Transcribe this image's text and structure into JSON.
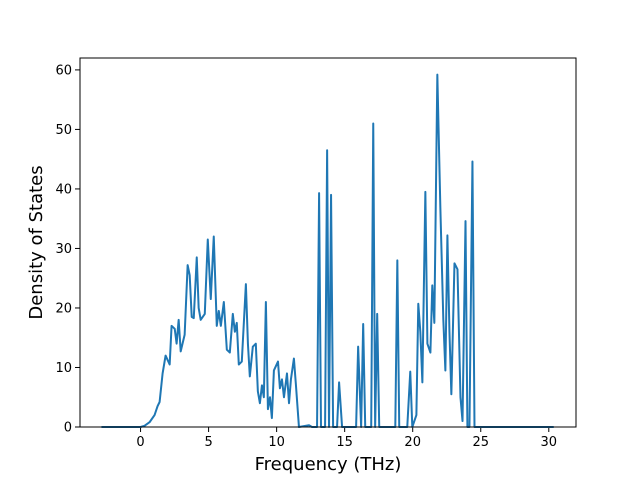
{
  "chart_data": {
    "type": "line",
    "xlabel": "Frequency (THz)",
    "ylabel": "Density of States",
    "xlim": [
      -4.45,
      32.0
    ],
    "ylim": [
      0,
      62
    ],
    "xticks": [
      0,
      5,
      10,
      15,
      20,
      25,
      30
    ],
    "yticks": [
      0,
      10,
      20,
      30,
      40,
      50,
      60
    ],
    "grid": false,
    "series": [
      {
        "color": "#1f77b4",
        "x": [
          -2.8,
          0,
          0.29,
          0.66,
          1.03,
          1.25,
          1.4,
          1.62,
          1.84,
          2.14,
          2.28,
          2.51,
          2.65,
          2.8,
          2.95,
          3.24,
          3.46,
          3.61,
          3.76,
          3.91,
          4.13,
          4.27,
          4.42,
          4.72,
          4.94,
          5.16,
          5.38,
          5.6,
          5.75,
          5.9,
          6.12,
          6.34,
          6.56,
          6.78,
          6.93,
          7.07,
          7.22,
          7.44,
          7.74,
          7.89,
          8.03,
          8.25,
          8.47,
          8.62,
          8.77,
          8.92,
          9.06,
          9.21,
          9.36,
          9.51,
          9.65,
          9.8,
          10.1,
          10.24,
          10.39,
          10.54,
          10.76,
          10.91,
          11.05,
          11.27,
          11.42,
          11.64,
          12.38,
          12.6,
          12.97,
          13.12,
          13.26,
          13.56,
          13.71,
          13.85,
          14.0,
          14.15,
          14.44,
          14.59,
          14.81,
          15.84,
          15.99,
          16.21,
          16.36,
          16.51,
          16.95,
          17.1,
          17.24,
          17.39,
          17.54,
          18.72,
          18.87,
          19.01,
          19.6,
          19.82,
          19.97,
          20.27,
          20.41,
          20.56,
          20.71,
          20.93,
          21.08,
          21.3,
          21.44,
          21.59,
          21.81,
          22.03,
          22.25,
          22.4,
          22.55,
          22.7,
          22.84,
          23.07,
          23.29,
          23.51,
          23.66,
          23.88,
          24.02,
          24.17,
          24.39,
          24.54,
          30.29
        ],
        "values": [
          0,
          0,
          0.2,
          0.8,
          2,
          3.5,
          4.2,
          9,
          12,
          10.5,
          17,
          16.5,
          14,
          18,
          12.7,
          15.5,
          27.2,
          25.5,
          18.5,
          18.3,
          28.5,
          20,
          18,
          19,
          31.5,
          21.5,
          32,
          17,
          19.5,
          17,
          21,
          13,
          12.5,
          19,
          16,
          17.5,
          10.5,
          11,
          24,
          14,
          8.5,
          13.5,
          14,
          6,
          4,
          7,
          5,
          21,
          3,
          5,
          1.5,
          9.5,
          11,
          6.5,
          8,
          5,
          9,
          4,
          8,
          11.5,
          7,
          0,
          0.3,
          0,
          0,
          39.3,
          0,
          0,
          46.5,
          0,
          39,
          0,
          0,
          7.5,
          0,
          0,
          13.5,
          0,
          17.3,
          0,
          0,
          51,
          0,
          19,
          0,
          0,
          28,
          0,
          0,
          9.3,
          0,
          2,
          20.7,
          16,
          7.5,
          39.5,
          14,
          12.5,
          23.8,
          17.5,
          59.2,
          37,
          18,
          9.5,
          32.2,
          16,
          5.5,
          27.5,
          26.5,
          5,
          1,
          34.6,
          0,
          0,
          44.6,
          0,
          0
        ]
      }
    ]
  }
}
